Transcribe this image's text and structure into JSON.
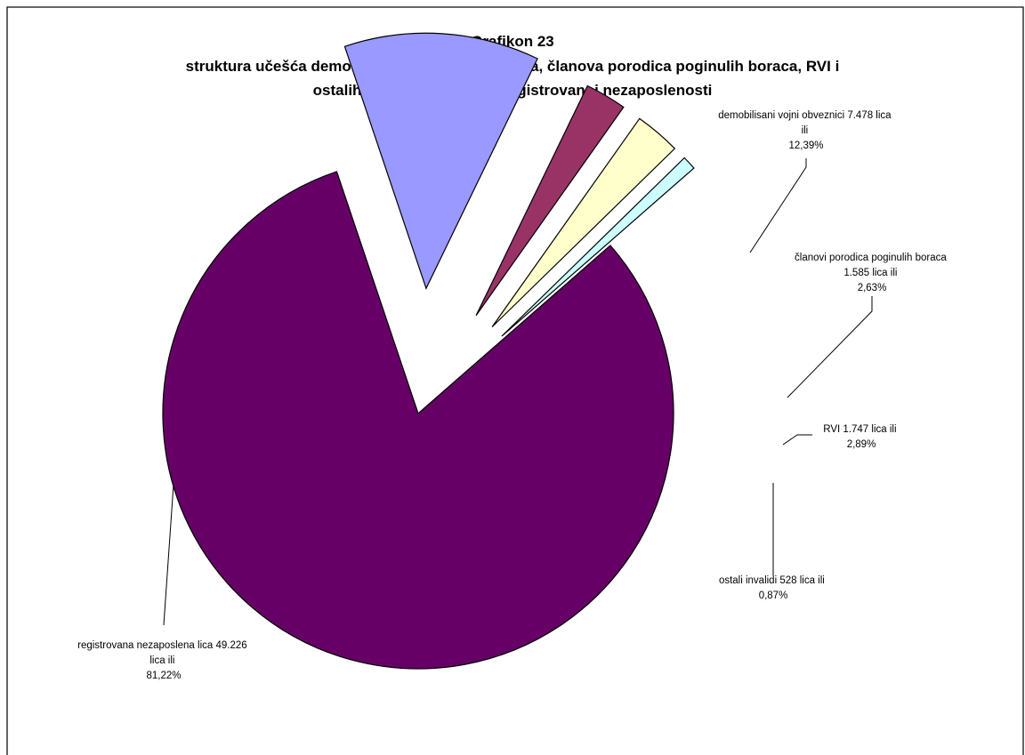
{
  "chart_data": {
    "type": "pie",
    "title": [
      "Grafikon 23",
      "struktura učešća demobilisanih vojnih obveznika, članova porodica poginulih boraca, RVI i",
      "ostalih invalida u ukupnoj registrovanoj nezaposlenosti"
    ],
    "exploded": true,
    "slices": [
      {
        "category": "registrovana nezaposlena lica",
        "count": 49226,
        "percent": 81.22,
        "color": "#660066",
        "label_lines": [
          "registrovana nezaposlena lica 49.226",
          "lica ili",
          "81,22%"
        ]
      },
      {
        "category": "demobilisani vojni obveznici",
        "count": 7478,
        "percent": 12.39,
        "color": "#9999ff",
        "label_lines": [
          "demobilisani vojni obveznici 7.478 lica",
          "ili",
          "12,39%"
        ]
      },
      {
        "category": "članovi porodica poginulih boraca",
        "count": 1585,
        "percent": 2.63,
        "color": "#993366",
        "label_lines": [
          "članovi porodica poginulih boraca",
          "1.585 lica ili",
          "2,63%"
        ]
      },
      {
        "category": "RVI",
        "count": 1747,
        "percent": 2.89,
        "color": "#ffffcc",
        "label_lines": [
          "RVI 1.747 lica ili",
          "2,89%"
        ]
      },
      {
        "category": "ostali invalidi",
        "count": 528,
        "percent": 0.87,
        "color": "#ccffff",
        "label_lines": [
          "ostali invalidi 528 lica ili",
          "0,87%"
        ]
      }
    ]
  }
}
